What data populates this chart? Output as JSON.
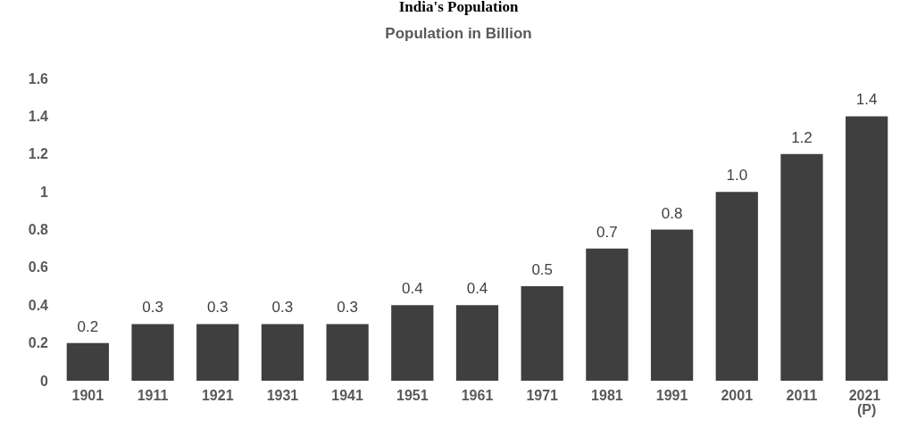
{
  "chart_data": {
    "type": "bar",
    "title": "India's Population",
    "subtitle": "Population in Billion",
    "categories": [
      "1901",
      "1911",
      "1921",
      "1931",
      "1941",
      "1951",
      "1961",
      "1971",
      "1981",
      "1991",
      "2001",
      "2011",
      "2021 (P)"
    ],
    "values": [
      0.2,
      0.3,
      0.3,
      0.3,
      0.3,
      0.4,
      0.4,
      0.5,
      0.7,
      0.8,
      1.0,
      1.2,
      1.4
    ],
    "value_labels": [
      "0.2",
      "0.3",
      "0.3",
      "0.3",
      "0.3",
      "0.4",
      "0.4",
      "0.5",
      "0.7",
      "0.8",
      "1.0",
      "1.2",
      "1.4"
    ],
    "color": "#3f3f3f",
    "ylim": [
      0,
      1.6
    ],
    "yticks": [
      0,
      0.2,
      0.4,
      0.6,
      0.8,
      1,
      1.2,
      1.4,
      1.6
    ]
  }
}
